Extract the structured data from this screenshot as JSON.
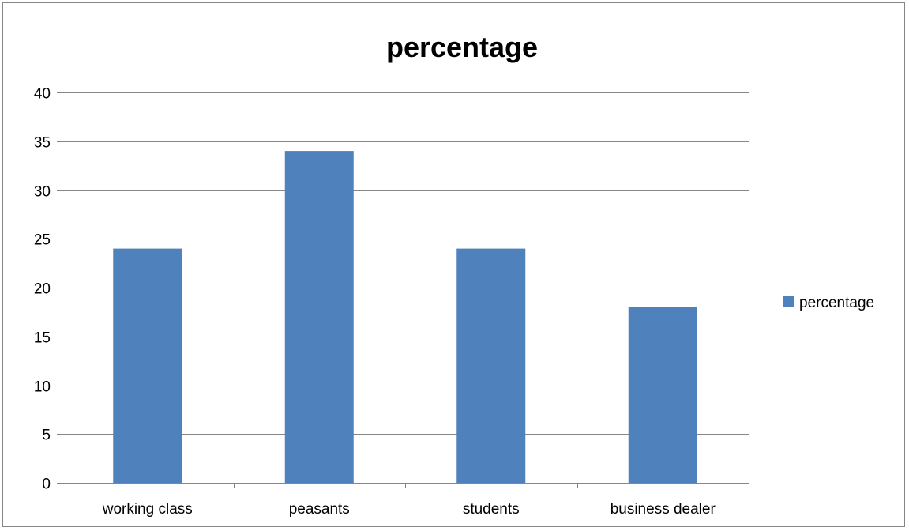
{
  "chart_data": {
    "type": "bar",
    "title": "percentage",
    "xlabel": "",
    "ylabel": "",
    "categories": [
      "working class",
      "peasants",
      "students",
      "business dealer"
    ],
    "series": [
      {
        "name": "percentage",
        "values": [
          24,
          34,
          24,
          18
        ]
      }
    ],
    "ylim": [
      0,
      40
    ],
    "yticks": [
      "0",
      "5",
      "10",
      "15",
      "20",
      "25",
      "30",
      "35",
      "40"
    ],
    "grid": true,
    "legend": "right",
    "colors": {
      "bar": "#4F81BD",
      "grid": "#868686",
      "axis": "#868686"
    }
  }
}
